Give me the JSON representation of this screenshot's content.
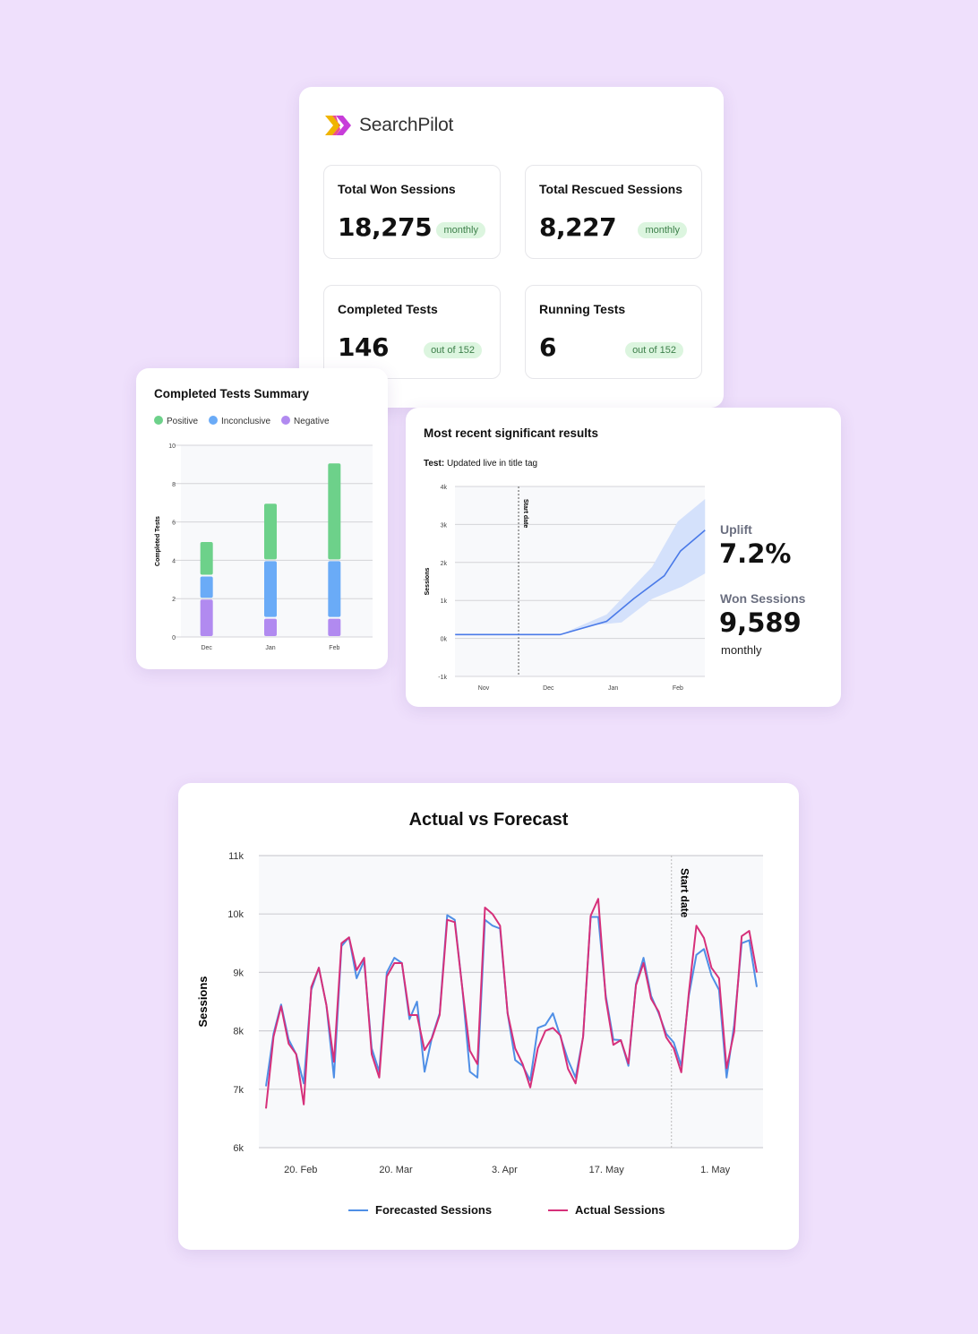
{
  "brand": {
    "name": "SearchPilot",
    "colors": {
      "left_chevron": "#f0b400",
      "right_chevron": "#c22dd6",
      "mid": "#e6246e"
    }
  },
  "stats": [
    {
      "title": "Total Won Sessions",
      "value": "18,275",
      "badge": "monthly"
    },
    {
      "title": "Total Rescued Sessions",
      "value": "8,227",
      "badge": "monthly"
    },
    {
      "title": "Completed Tests",
      "value": "146",
      "badge": "out of 152"
    },
    {
      "title": "Running Tests",
      "value": "6",
      "badge": "out of 152"
    }
  ],
  "summary": {
    "title": "Completed Tests Summary",
    "chart_data": {
      "type": "bar",
      "stacked": true,
      "categories": [
        "Dec",
        "Jan",
        "Feb"
      ],
      "series": [
        {
          "name": "Negative",
          "color": "#b18af0",
          "values": [
            2,
            1,
            1
          ]
        },
        {
          "name": "Inconclusive",
          "color": "#6aabf7",
          "values": [
            1.2,
            3,
            3
          ]
        },
        {
          "name": "Positive",
          "color": "#6dd18a",
          "values": [
            1.8,
            3,
            5.1
          ]
        }
      ],
      "legend": [
        "Positive",
        "Inconclusive",
        "Negative"
      ],
      "ylabel": "Completed Tests",
      "ylim": [
        0,
        10
      ],
      "yticks": [
        0,
        2,
        4,
        6,
        8,
        10
      ],
      "grid": true,
      "legend_placement": "top-left"
    }
  },
  "recent": {
    "title": "Most recent significant results",
    "test_label": "Test:",
    "test_name": "Updated live in title tag",
    "uplift_label": "Uplift",
    "uplift": "7.2%",
    "won_label": "Won Sessions",
    "won": "9,589",
    "won_period": "monthly",
    "chart_data": {
      "type": "line",
      "xticks": [
        "Nov",
        "Dec",
        "Jan",
        "Feb"
      ],
      "ylabel": "Sessions",
      "yticks": [
        "-1k",
        "0k",
        "1k",
        "2k",
        "3k",
        "4k"
      ],
      "ylim": [
        -1,
        4
      ],
      "start_date_label": "Start date",
      "start_date_month": 0.54,
      "line": [
        [
          -0.44,
          0.1
        ],
        [
          1.18,
          0.1
        ],
        [
          1.9,
          0.45
        ],
        [
          2.32,
          1.05
        ],
        [
          2.79,
          1.65
        ],
        [
          3.04,
          2.3
        ],
        [
          3.42,
          2.85
        ]
      ],
      "band_upper": [
        [
          1.18,
          0.1
        ],
        [
          1.9,
          0.63
        ],
        [
          2.6,
          1.88
        ],
        [
          3.0,
          3.08
        ],
        [
          3.42,
          3.67
        ]
      ],
      "band_lower": [
        [
          1.18,
          0.1
        ],
        [
          1.7,
          0.35
        ],
        [
          2.13,
          0.42
        ],
        [
          2.6,
          1.04
        ],
        [
          3.06,
          1.36
        ],
        [
          3.42,
          1.71
        ]
      ],
      "color": "#4a7ae8",
      "band_color": "#d4e1fb"
    }
  },
  "avf": {
    "title": "Actual vs Forecast",
    "chart_data": {
      "type": "line",
      "ylabel": "Sessions",
      "ylim": [
        6,
        11
      ],
      "yticks": [
        "6k",
        "7k",
        "8k",
        "9k",
        "10k",
        "11k"
      ],
      "xticks": [
        {
          "label": "20. Feb",
          "at": 4.6
        },
        {
          "label": "20. Mar",
          "at": 17.2
        },
        {
          "label": "3. Apr",
          "at": 31.6
        },
        {
          "label": "17. May",
          "at": 45.1
        },
        {
          "label": "1. May",
          "at": 59.5
        }
      ],
      "start_date_label": "Start date",
      "start_date_at": 53.7,
      "series": [
        {
          "name": "Forecasted Sessions",
          "color": "#4f8fe6",
          "values": [
            7.05,
            7.95,
            8.45,
            7.85,
            7.6,
            7.1,
            8.7,
            9.08,
            8.44,
            7.2,
            9.45,
            9.6,
            8.9,
            9.2,
            7.7,
            7.3,
            9.0,
            9.25,
            9.16,
            8.2,
            8.5,
            7.3,
            7.9,
            8.3,
            9.98,
            9.9,
            8.73,
            7.3,
            7.2,
            9.9,
            9.8,
            9.75,
            8.3,
            7.5,
            7.4,
            7.15,
            8.05,
            8.1,
            8.3,
            7.9,
            7.5,
            7.2,
            7.9,
            9.95,
            9.95,
            8.6,
            7.85,
            7.84,
            7.4,
            8.8,
            9.25,
            8.6,
            8.3,
            7.95,
            7.8,
            7.4,
            8.6,
            9.3,
            9.4,
            8.95,
            8.7,
            7.2,
            8.1,
            9.5,
            9.55,
            8.75
          ]
        },
        {
          "name": "Actual Sessions",
          "color": "#d6307a",
          "values": [
            6.67,
            7.9,
            8.42,
            7.78,
            7.6,
            6.74,
            8.75,
            9.08,
            8.44,
            7.47,
            9.5,
            9.6,
            9.04,
            9.25,
            7.6,
            7.2,
            8.93,
            9.16,
            9.16,
            8.27,
            8.27,
            7.67,
            7.88,
            8.27,
            9.9,
            9.86,
            8.73,
            7.66,
            7.43,
            10.11,
            10.0,
            9.8,
            8.3,
            7.7,
            7.43,
            7.03,
            7.7,
            8.0,
            8.05,
            7.92,
            7.35,
            7.1,
            7.9,
            9.97,
            10.26,
            8.55,
            7.76,
            7.84,
            7.44,
            8.78,
            9.16,
            8.55,
            8.33,
            7.89,
            7.7,
            7.29,
            8.65,
            9.8,
            9.59,
            9.08,
            8.9,
            7.36,
            7.98,
            9.62,
            9.71,
            9.0
          ]
        }
      ],
      "grid": true,
      "legend_placement": "bottom"
    }
  }
}
